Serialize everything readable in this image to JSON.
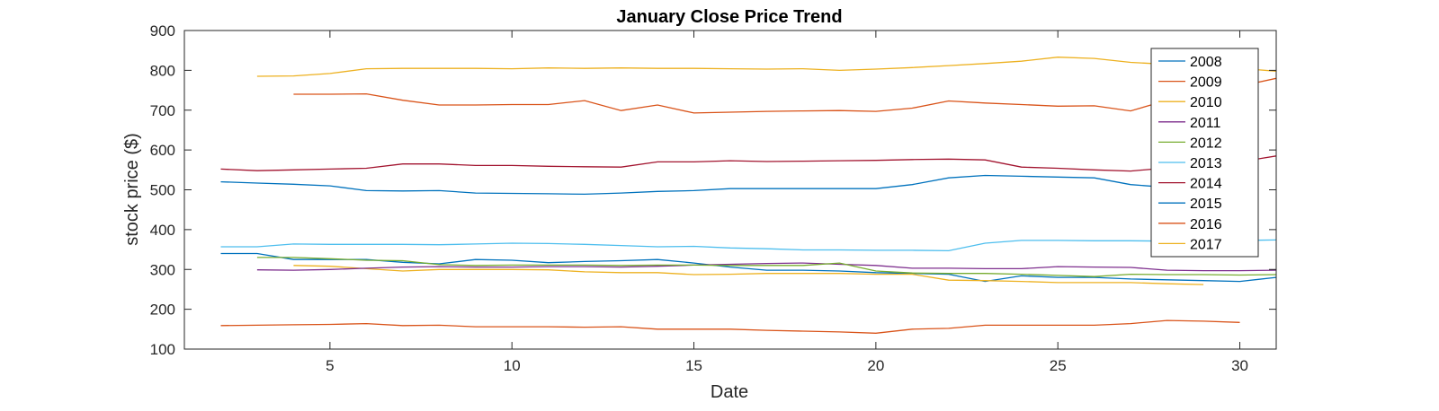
{
  "chart_data": {
    "type": "line",
    "title": "January Close Price Trend",
    "xlabel": "Date",
    "ylabel": "stock price ($)",
    "xlim": [
      1,
      31
    ],
    "ylim": [
      100,
      900
    ],
    "xticks": [
      5,
      10,
      15,
      20,
      25,
      30
    ],
    "yticks": [
      100,
      200,
      300,
      400,
      500,
      600,
      700,
      800,
      900
    ],
    "grid": false,
    "legend_position": "top-right",
    "series": [
      {
        "name": "2008",
        "color": "#0072BD",
        "x": [
          2,
          3,
          4,
          5,
          6,
          7,
          8,
          9,
          10,
          11,
          12,
          13,
          14,
          15,
          16,
          17,
          18,
          19,
          20,
          21,
          22,
          23,
          24,
          25,
          26,
          27,
          28,
          29,
          30,
          31
        ],
        "y": [
          340,
          340,
          325,
          325,
          325,
          318,
          314,
          325,
          323,
          317,
          320,
          322,
          325,
          316,
          306,
          298,
          298,
          296,
          292,
          290,
          288,
          270,
          284,
          280,
          280,
          276,
          274,
          272,
          270,
          280
        ]
      },
      {
        "name": "2009",
        "color": "#D95319",
        "x": [
          2,
          3,
          4,
          5,
          6,
          7,
          8,
          9,
          10,
          11,
          12,
          13,
          14,
          15,
          16,
          17,
          18,
          19,
          20,
          21,
          22,
          23,
          24,
          25,
          26,
          27,
          28,
          29,
          30
        ],
        "y": [
          159,
          160,
          161,
          162,
          164,
          159,
          160,
          156,
          156,
          156,
          155,
          156,
          150,
          150,
          150,
          147,
          145,
          143,
          140,
          150,
          152,
          160,
          160,
          160,
          160,
          164,
          172,
          170,
          167
        ]
      },
      {
        "name": "2010",
        "color": "#EDB120",
        "x": [
          4,
          5,
          6,
          7,
          8,
          9,
          10,
          11,
          12,
          13,
          14,
          15,
          16,
          17,
          18,
          19,
          20,
          21,
          22,
          23,
          24,
          25,
          26,
          27,
          28,
          29
        ],
        "y": [
          310,
          308,
          302,
          296,
          300,
          300,
          300,
          299,
          294,
          292,
          292,
          287,
          288,
          290,
          290,
          290,
          288,
          288,
          273,
          272,
          270,
          267,
          267,
          267,
          264,
          262
        ]
      },
      {
        "name": "2011",
        "color": "#7E2F8E",
        "x": [
          3,
          4,
          5,
          6,
          7,
          8,
          9,
          10,
          11,
          12,
          13,
          14,
          15,
          16,
          17,
          18,
          19,
          20,
          21,
          22,
          23,
          24,
          25,
          26,
          27,
          28,
          29,
          30,
          31
        ],
        "y": [
          299,
          298,
          300,
          303,
          306,
          307,
          306,
          306,
          307,
          307,
          306,
          308,
          311,
          313,
          315,
          316,
          313,
          310,
          303,
          303,
          302,
          302,
          307,
          306,
          305,
          298,
          297,
          297,
          298
        ]
      },
      {
        "name": "2012",
        "color": "#77AC30",
        "x": [
          3,
          4,
          5,
          6,
          7,
          8,
          9,
          10,
          11,
          12,
          13,
          14,
          15,
          16,
          17,
          18,
          19,
          20,
          21,
          22,
          23,
          24,
          25,
          26,
          27,
          28,
          29,
          30,
          31
        ],
        "y": [
          330,
          330,
          327,
          323,
          322,
          312,
          310,
          311,
          311,
          311,
          310,
          311,
          311,
          310,
          310,
          310,
          316,
          296,
          291,
          290,
          290,
          288,
          285,
          282,
          288,
          287,
          287,
          286,
          287
        ]
      },
      {
        "name": "2013",
        "color": "#4DBEEE",
        "x": [
          2,
          3,
          4,
          5,
          6,
          7,
          8,
          9,
          10,
          11,
          12,
          13,
          14,
          15,
          16,
          17,
          18,
          19,
          20,
          21,
          22,
          23,
          24,
          25,
          26,
          27,
          28,
          29,
          30,
          31
        ],
        "y": [
          357,
          357,
          364,
          363,
          363,
          363,
          362,
          364,
          366,
          365,
          363,
          360,
          357,
          358,
          354,
          352,
          349,
          349,
          348,
          348,
          347,
          366,
          373,
          373,
          372,
          372,
          371,
          372,
          373,
          374
        ]
      },
      {
        "name": "2014",
        "color": "#A2142F",
        "x": [
          2,
          3,
          4,
          5,
          6,
          7,
          8,
          9,
          10,
          11,
          12,
          13,
          14,
          15,
          16,
          17,
          18,
          19,
          20,
          21,
          22,
          23,
          24,
          25,
          26,
          27,
          28,
          29,
          30,
          31
        ],
        "y": [
          552,
          548,
          550,
          552,
          554,
          565,
          565,
          561,
          561,
          559,
          558,
          557,
          570,
          570,
          573,
          571,
          572,
          573,
          574,
          576,
          577,
          575,
          557,
          554,
          550,
          547,
          555,
          565,
          570,
          585
        ]
      },
      {
        "name": "2015",
        "color": "#0072BD",
        "x": [
          2,
          3,
          4,
          5,
          6,
          7,
          8,
          9,
          10,
          11,
          12,
          13,
          14,
          15,
          16,
          17,
          18,
          19,
          20,
          21,
          22,
          23,
          24,
          25,
          26,
          27,
          28,
          29
        ],
        "y": [
          520,
          517,
          514,
          510,
          498,
          497,
          498,
          492,
          491,
          490,
          489,
          492,
          496,
          498,
          503,
          503,
          503,
          503,
          503,
          513,
          530,
          536,
          534,
          532,
          530,
          513,
          506,
          503
        ]
      },
      {
        "name": "2016",
        "color": "#D95319",
        "x": [
          4,
          5,
          6,
          7,
          8,
          9,
          10,
          11,
          12,
          13,
          14,
          15,
          16,
          17,
          18,
          19,
          20,
          21,
          22,
          23,
          24,
          25,
          26,
          27,
          28,
          29,
          30,
          31
        ],
        "y": [
          740,
          740,
          741,
          725,
          713,
          713,
          714,
          714,
          724,
          699,
          713,
          693,
          695,
          697,
          698,
          699,
          697,
          705,
          723,
          718,
          714,
          710,
          711,
          698,
          725,
          745,
          760,
          780
        ]
      },
      {
        "name": "2017",
        "color": "#EDB120",
        "x": [
          3,
          4,
          5,
          6,
          7,
          8,
          9,
          10,
          11,
          12,
          13,
          14,
          15,
          16,
          17,
          18,
          19,
          20,
          21,
          22,
          23,
          24,
          25,
          26,
          27,
          28,
          29,
          30,
          31
        ],
        "y": [
          785,
          786,
          792,
          804,
          805,
          805,
          805,
          804,
          806,
          805,
          806,
          805,
          805,
          804,
          803,
          804,
          800,
          803,
          807,
          812,
          817,
          823,
          833,
          830,
          820,
          815,
          810,
          805,
          798
        ]
      }
    ]
  }
}
